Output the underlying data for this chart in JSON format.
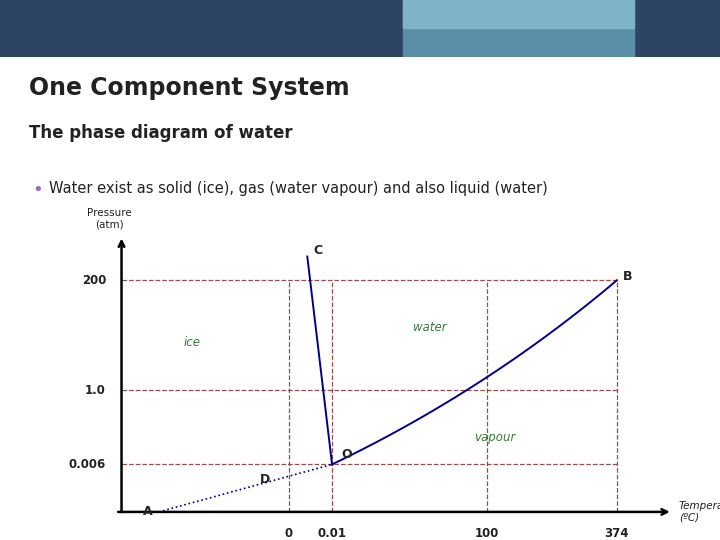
{
  "title": "One Component System",
  "subtitle": "The phase diagram of water",
  "bullet": "Water exist as solid (ice), gas (water vapour) and also liquid (water)",
  "bullet_color": "#9966cc",
  "bg_color": "#ffffff",
  "header_dark": "#2e4464",
  "header_teal1": "#5b8fa8",
  "header_teal2": "#7eb3c8",
  "dashed_color": "#8b3a3a",
  "line_color": "#00008b",
  "label_color": "#3a7a3a",
  "text_color": "#222222",
  "note_color": "#555555"
}
